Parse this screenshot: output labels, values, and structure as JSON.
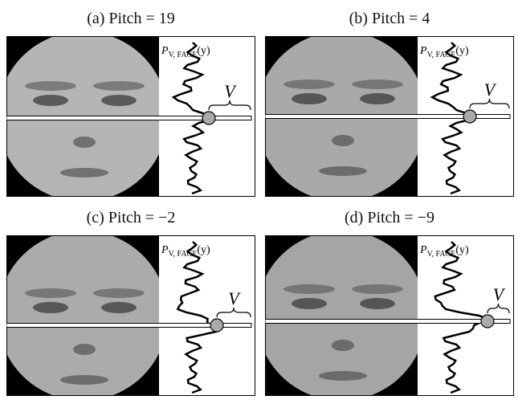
{
  "panels": [
    {
      "caption": "(a) Pitch = 19",
      "profile_label": {
        "symbol": "P",
        "subscript": "V, FACE",
        "argument": "(y)"
      },
      "brace_label": "V"
    },
    {
      "caption": "(b) Pitch = 4",
      "profile_label": {
        "symbol": "P",
        "subscript": "V, FACE",
        "argument": "(y)"
      },
      "brace_label": "V"
    },
    {
      "caption": "(c) Pitch = −2",
      "profile_label": {
        "symbol": "P",
        "subscript": "V, FACE",
        "argument": "(y)"
      },
      "brace_label": "V"
    },
    {
      "caption": "(d) Pitch = −9",
      "profile_label": {
        "symbol": "P",
        "subscript": "V, FACE",
        "argument": "(y)"
      },
      "brace_label": "V"
    }
  ]
}
